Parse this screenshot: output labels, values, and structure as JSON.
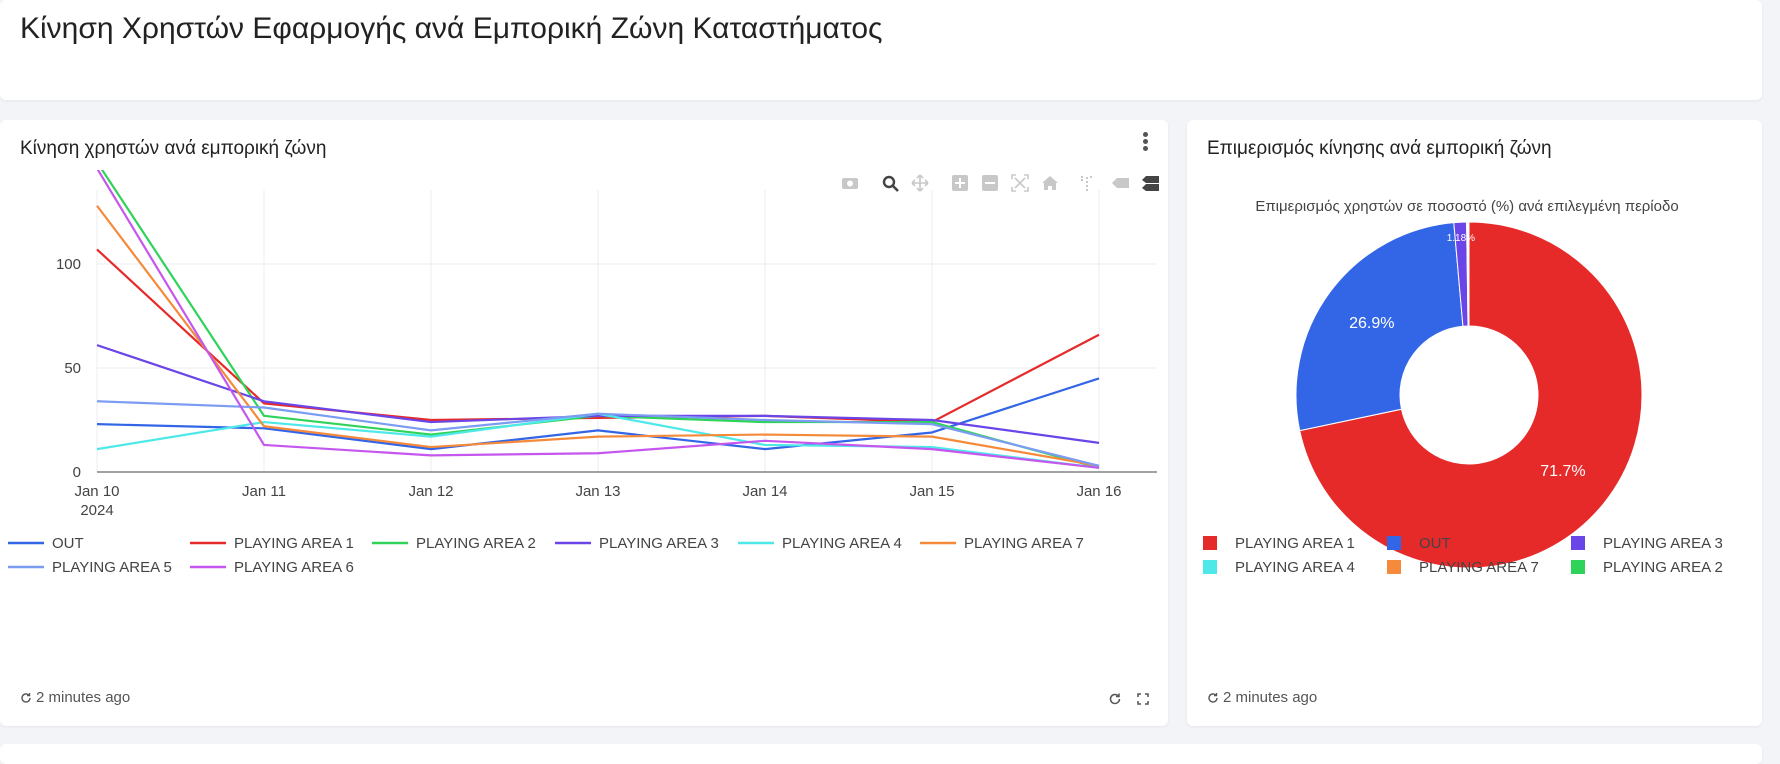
{
  "page": {
    "title": "Κίνηση Χρηστών Εφαρμογής ανά Εμπορική Ζώνη Καταστήματος"
  },
  "left_card": {
    "title": "Κίνηση χρηστών ανά εμπορική ζώνη",
    "updated": "2 minutes ago"
  },
  "right_card": {
    "title": "Επιμερισμός κίνησης ανά εμπορική ζώνη",
    "updated": "2 minutes ago"
  },
  "chart_data": [
    {
      "type": "line",
      "title": "",
      "xlabel": "",
      "ylabel": "",
      "x": [
        "Jan 10",
        "Jan 11",
        "Jan 12",
        "Jan 13",
        "Jan 14",
        "Jan 15",
        "Jan 16"
      ],
      "x_year_label": "2024",
      "ylim": [
        0,
        160
      ],
      "yticks": [
        0,
        50,
        100,
        150
      ],
      "grid": true,
      "legend_position": "bottom",
      "series": [
        {
          "name": "OUT",
          "color": "#3366e6",
          "values": [
            23,
            21,
            11,
            20,
            11,
            19,
            45
          ]
        },
        {
          "name": "PLAYING AREA 1",
          "color": "#e62a2a",
          "values": [
            107,
            33,
            25,
            26,
            27,
            24,
            66
          ]
        },
        {
          "name": "PLAYING AREA 2",
          "color": "#2fd35a",
          "values": [
            149,
            27,
            18,
            27,
            24,
            24,
            2
          ]
        },
        {
          "name": "PLAYING AREA 3",
          "color": "#6a45e8",
          "values": [
            61,
            34,
            24,
            27,
            27,
            25,
            14
          ]
        },
        {
          "name": "PLAYING AREA 4",
          "color": "#4ee8e8",
          "values": [
            11,
            24,
            17,
            28,
            13,
            12,
            2
          ]
        },
        {
          "name": "PLAYING AREA 7",
          "color": "#f58a3a",
          "values": [
            128,
            22,
            12,
            17,
            18,
            17,
            3
          ]
        },
        {
          "name": "PLAYING AREA 5",
          "color": "#7c9cf2",
          "values": [
            34,
            31,
            20,
            28,
            25,
            23,
            3
          ]
        },
        {
          "name": "PLAYING AREA 6",
          "color": "#c556ee",
          "values": [
            146,
            13,
            8,
            9,
            15,
            11,
            2
          ]
        }
      ]
    },
    {
      "type": "pie",
      "hole": true,
      "title": "Επιμερισμός χρηστών σε ποσοστό (%) ανά επιλεγμένη περίοδο",
      "legend_position": "bottom",
      "slices": [
        {
          "name": "PLAYING AREA 1",
          "value": 71.7,
          "label": "71.7%",
          "color": "#e62a2a"
        },
        {
          "name": "OUT",
          "value": 26.9,
          "label": "26.9%",
          "color": "#3366e6"
        },
        {
          "name": "PLAYING AREA 3",
          "value": 1.18,
          "label": "1.18%",
          "color": "#6a45e8"
        },
        {
          "name": "PLAYING AREA 4",
          "value": 0.08,
          "label": "",
          "color": "#4ee8e8"
        },
        {
          "name": "PLAYING AREA 7",
          "value": 0.07,
          "label": "",
          "color": "#f58a3a"
        },
        {
          "name": "PLAYING AREA 2",
          "value": 0.07,
          "label": "",
          "color": "#2fd35a"
        }
      ]
    }
  ]
}
